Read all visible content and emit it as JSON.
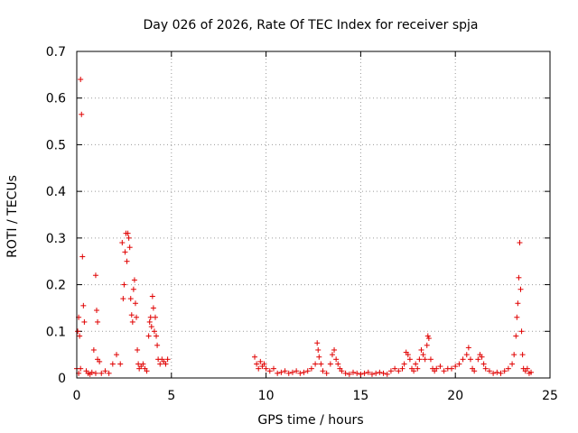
{
  "chart_data": {
    "type": "scatter",
    "title": "Day 026 of 2026, Rate Of TEC Index for receiver spja",
    "xlabel": "GPS time / hours",
    "ylabel": "ROTI / TECUs",
    "xlim": [
      0,
      25
    ],
    "ylim": [
      0,
      0.7
    ],
    "xticks": [
      0,
      5,
      10,
      15,
      20,
      25
    ],
    "yticks": [
      0,
      0.1,
      0.2,
      0.3,
      0.4,
      0.5,
      0.6,
      0.7
    ],
    "ytick_labels": [
      "0",
      "0.1",
      "0.2",
      "0.3",
      "0.4",
      "0.5",
      "0.6",
      "0.7"
    ],
    "grid": true,
    "marker": "+",
    "color": "#e00000",
    "series": [
      {
        "name": "ROTI",
        "x": [
          0.0,
          0.05,
          0.1,
          0.1,
          0.15,
          0.2,
          0.2,
          0.25,
          0.3,
          0.35,
          0.4,
          0.5,
          0.6,
          0.7,
          0.8,
          0.9,
          1.0,
          1.0,
          1.05,
          1.1,
          1.1,
          1.2,
          1.3,
          1.5,
          1.7,
          1.9,
          2.1,
          2.3,
          2.4,
          2.45,
          2.5,
          2.55,
          2.6,
          2.65,
          2.7,
          2.75,
          2.8,
          2.85,
          2.9,
          2.95,
          3.0,
          3.05,
          3.1,
          3.15,
          3.2,
          3.25,
          3.3,
          3.4,
          3.5,
          3.6,
          3.7,
          3.8,
          3.85,
          3.9,
          3.95,
          4.0,
          4.05,
          4.1,
          4.15,
          4.2,
          4.25,
          4.3,
          4.4,
          4.5,
          4.6,
          4.7,
          4.8,
          9.4,
          9.5,
          9.6,
          9.7,
          9.8,
          9.9,
          10.0,
          10.2,
          10.4,
          10.6,
          10.8,
          11.0,
          11.2,
          11.4,
          11.6,
          11.8,
          12.0,
          12.2,
          12.4,
          12.6,
          12.7,
          12.75,
          12.8,
          12.9,
          13.0,
          13.2,
          13.4,
          13.5,
          13.6,
          13.7,
          13.8,
          13.9,
          14.0,
          14.2,
          14.4,
          14.6,
          14.8,
          15.0,
          15.2,
          15.4,
          15.6,
          15.8,
          16.0,
          16.2,
          16.4,
          16.6,
          16.8,
          17.0,
          17.2,
          17.3,
          17.4,
          17.5,
          17.6,
          17.7,
          17.8,
          17.9,
          18.0,
          18.1,
          18.2,
          18.3,
          18.4,
          18.5,
          18.55,
          18.6,
          18.7,
          18.8,
          18.9,
          19.0,
          19.2,
          19.4,
          19.6,
          19.8,
          20.0,
          20.2,
          20.4,
          20.6,
          20.7,
          20.8,
          20.9,
          21.0,
          21.2,
          21.3,
          21.4,
          21.5,
          21.6,
          21.8,
          22.0,
          22.2,
          22.4,
          22.6,
          22.8,
          23.0,
          23.1,
          23.2,
          23.25,
          23.3,
          23.35,
          23.4,
          23.45,
          23.5,
          23.55,
          23.6,
          23.7,
          23.8,
          23.9,
          24.0
        ],
        "y": [
          0.02,
          0.1,
          0.13,
          0.01,
          0.09,
          0.64,
          0.02,
          0.565,
          0.26,
          0.155,
          0.12,
          0.015,
          0.01,
          0.008,
          0.012,
          0.06,
          0.22,
          0.01,
          0.145,
          0.12,
          0.04,
          0.035,
          0.01,
          0.015,
          0.01,
          0.03,
          0.05,
          0.03,
          0.29,
          0.17,
          0.2,
          0.27,
          0.31,
          0.25,
          0.31,
          0.3,
          0.28,
          0.17,
          0.135,
          0.12,
          0.19,
          0.21,
          0.16,
          0.13,
          0.06,
          0.03,
          0.02,
          0.025,
          0.03,
          0.02,
          0.015,
          0.09,
          0.12,
          0.13,
          0.11,
          0.175,
          0.15,
          0.1,
          0.13,
          0.09,
          0.07,
          0.04,
          0.03,
          0.04,
          0.035,
          0.03,
          0.04,
          0.045,
          0.03,
          0.02,
          0.035,
          0.025,
          0.03,
          0.02,
          0.015,
          0.02,
          0.01,
          0.012,
          0.015,
          0.01,
          0.012,
          0.015,
          0.01,
          0.012,
          0.015,
          0.02,
          0.03,
          0.075,
          0.06,
          0.045,
          0.03,
          0.015,
          0.01,
          0.03,
          0.05,
          0.06,
          0.04,
          0.03,
          0.02,
          0.015,
          0.01,
          0.008,
          0.012,
          0.01,
          0.008,
          0.01,
          0.012,
          0.008,
          0.01,
          0.012,
          0.01,
          0.008,
          0.015,
          0.02,
          0.015,
          0.02,
          0.03,
          0.055,
          0.05,
          0.04,
          0.02,
          0.015,
          0.03,
          0.02,
          0.04,
          0.06,
          0.05,
          0.04,
          0.07,
          0.09,
          0.085,
          0.04,
          0.02,
          0.015,
          0.02,
          0.025,
          0.015,
          0.02,
          0.02,
          0.025,
          0.03,
          0.04,
          0.05,
          0.065,
          0.04,
          0.02,
          0.015,
          0.04,
          0.05,
          0.045,
          0.03,
          0.02,
          0.015,
          0.01,
          0.012,
          0.01,
          0.015,
          0.02,
          0.03,
          0.05,
          0.09,
          0.13,
          0.16,
          0.215,
          0.29,
          0.19,
          0.1,
          0.05,
          0.02,
          0.015,
          0.02,
          0.01,
          0.012
        ]
      }
    ]
  }
}
